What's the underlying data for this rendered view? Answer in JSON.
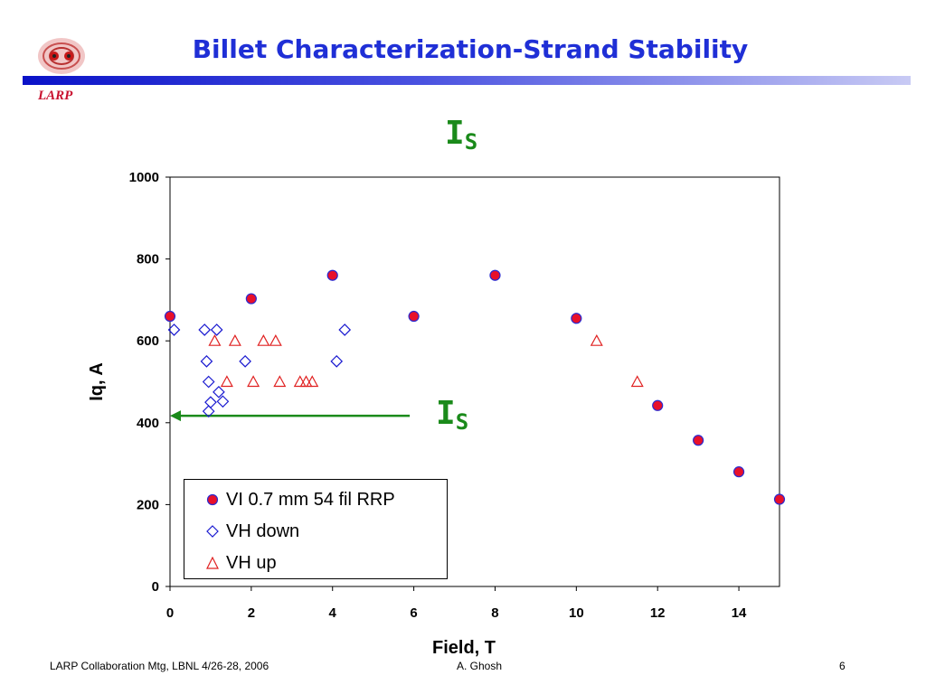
{
  "slide": {
    "title": "Billet Characterization-Strand Stability",
    "logo_text": "LARP",
    "footer_left": "LARP Collaboration Mtg, LBNL 4/26-28, 2006",
    "footer_mid": "A. Ghosh",
    "page_number": "6"
  },
  "annotations": {
    "is_top_main": "I",
    "is_top_sub": "S",
    "is_mid_main": "I",
    "is_mid_sub": "S"
  },
  "colors": {
    "title": "#1f2fd6",
    "annotation": "#1a8a1a",
    "series1_fill": "#e8102a",
    "series1_edge": "#2a2ad0",
    "series2": "#1a1ad0",
    "series3": "#e02020"
  },
  "chart_data": {
    "type": "scatter",
    "xlabel": "Field, T",
    "ylabel": "Iq, A",
    "xlim": [
      0,
      15
    ],
    "ylim": [
      0,
      1000
    ],
    "xticks": [
      "0",
      "2",
      "4",
      "6",
      "8",
      "10",
      "12",
      "14"
    ],
    "yticks": [
      "0",
      "200",
      "400",
      "600",
      "800",
      "1000"
    ],
    "grid": false,
    "legend_position": "bottom-left",
    "series": [
      {
        "name": "VI 0.7 mm 54 fil RRP",
        "marker": "circle",
        "points": [
          [
            0,
            660
          ],
          [
            2,
            703
          ],
          [
            4,
            760
          ],
          [
            6,
            660
          ],
          [
            8,
            760
          ],
          [
            10,
            655
          ],
          [
            12,
            442
          ],
          [
            13,
            357
          ],
          [
            14,
            280
          ],
          [
            15,
            213
          ]
        ]
      },
      {
        "name": "VH down",
        "marker": "diamond",
        "points": [
          [
            0.1,
            627
          ],
          [
            0.85,
            627
          ],
          [
            1.15,
            627
          ],
          [
            4.3,
            627
          ],
          [
            0.9,
            550
          ],
          [
            1.85,
            550
          ],
          [
            4.1,
            550
          ],
          [
            0.95,
            500
          ],
          [
            1.2,
            475
          ],
          [
            1.3,
            452
          ],
          [
            1.0,
            450
          ],
          [
            0.95,
            428
          ]
        ]
      },
      {
        "name": "VH up",
        "marker": "triangle",
        "points": [
          [
            1.1,
            600
          ],
          [
            1.6,
            600
          ],
          [
            2.3,
            600
          ],
          [
            2.6,
            600
          ],
          [
            10.5,
            600
          ],
          [
            1.4,
            500
          ],
          [
            2.05,
            500
          ],
          [
            2.7,
            500
          ],
          [
            3.2,
            500
          ],
          [
            3.35,
            500
          ],
          [
            3.5,
            500
          ],
          [
            11.5,
            500
          ]
        ]
      }
    ],
    "arrow": {
      "from": [
        5.9,
        417
      ],
      "to": [
        0,
        417
      ]
    }
  }
}
